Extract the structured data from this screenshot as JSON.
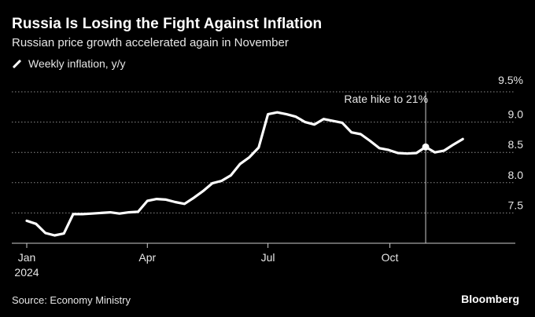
{
  "header": {
    "title": "Russia Is Losing the Fight Against Inflation",
    "subtitle": "Russian price growth accelerated again in November"
  },
  "legend": {
    "label": "Weekly inflation, y/y"
  },
  "footer": {
    "source": "Source: Economy Ministry",
    "brand": "Bloomberg"
  },
  "colors": {
    "background": "#000000",
    "line": "#ffffff",
    "grid": "#8c8c8c",
    "axis": "#cccccc"
  },
  "chart_data": {
    "type": "line",
    "title": "Russia Is Losing the Fight Against Inflation",
    "subtitle": "Russian price growth accelerated again in November",
    "xlabel": "",
    "ylabel": "",
    "ylim": [
      7.0,
      9.5
    ],
    "xlim": [
      "2024-01-01",
      "2024-12-31"
    ],
    "yticks": [
      7.5,
      8.0,
      8.5,
      9.0,
      9.5
    ],
    "ytick_labels": [
      "7.5",
      "8.0",
      "8.5",
      "9.0",
      "9.5%"
    ],
    "xticks": [
      {
        "date": "2024-01-01",
        "label": "Jan",
        "sublabel": "2024"
      },
      {
        "date": "2024-04-01",
        "label": "Apr"
      },
      {
        "date": "2024-07-01",
        "label": "Jul"
      },
      {
        "date": "2024-10-01",
        "label": "Oct"
      }
    ],
    "grid": true,
    "legend_position": "top-left",
    "series": [
      {
        "name": "Weekly inflation, y/y",
        "points": [
          [
            "2024-01-01",
            7.37
          ],
          [
            "2024-01-08",
            7.32
          ],
          [
            "2024-01-15",
            7.17
          ],
          [
            "2024-01-22",
            7.13
          ],
          [
            "2024-01-29",
            7.16
          ],
          [
            "2024-02-05",
            7.48
          ],
          [
            "2024-02-12",
            7.48
          ],
          [
            "2024-02-19",
            7.49
          ],
          [
            "2024-02-26",
            7.5
          ],
          [
            "2024-03-04",
            7.51
          ],
          [
            "2024-03-11",
            7.49
          ],
          [
            "2024-03-18",
            7.51
          ],
          [
            "2024-03-25",
            7.52
          ],
          [
            "2024-04-01",
            7.7
          ],
          [
            "2024-04-08",
            7.73
          ],
          [
            "2024-04-15",
            7.72
          ],
          [
            "2024-04-22",
            7.68
          ],
          [
            "2024-04-29",
            7.65
          ],
          [
            "2024-05-06",
            7.75
          ],
          [
            "2024-05-13",
            7.86
          ],
          [
            "2024-05-20",
            7.99
          ],
          [
            "2024-05-27",
            8.03
          ],
          [
            "2024-06-03",
            8.12
          ],
          [
            "2024-06-10",
            8.31
          ],
          [
            "2024-06-17",
            8.42
          ],
          [
            "2024-06-24",
            8.58
          ],
          [
            "2024-07-01",
            9.13
          ],
          [
            "2024-07-08",
            9.16
          ],
          [
            "2024-07-15",
            9.13
          ],
          [
            "2024-07-22",
            9.09
          ],
          [
            "2024-07-29",
            9.0
          ],
          [
            "2024-08-05",
            8.96
          ],
          [
            "2024-08-12",
            9.05
          ],
          [
            "2024-08-19",
            9.02
          ],
          [
            "2024-08-26",
            8.99
          ],
          [
            "2024-09-02",
            8.83
          ],
          [
            "2024-09-09",
            8.8
          ],
          [
            "2024-09-16",
            8.69
          ],
          [
            "2024-09-23",
            8.57
          ],
          [
            "2024-09-30",
            8.54
          ],
          [
            "2024-10-07",
            8.49
          ],
          [
            "2024-10-14",
            8.48
          ],
          [
            "2024-10-21",
            8.49
          ],
          [
            "2024-10-28",
            8.59
          ],
          [
            "2024-11-04",
            8.5
          ],
          [
            "2024-11-11",
            8.53
          ],
          [
            "2024-11-18",
            8.63
          ],
          [
            "2024-11-25",
            8.72
          ]
        ]
      }
    ],
    "annotations": [
      {
        "label": "Rate hike to 21%",
        "date": "2024-10-28",
        "value": 8.59
      }
    ]
  }
}
